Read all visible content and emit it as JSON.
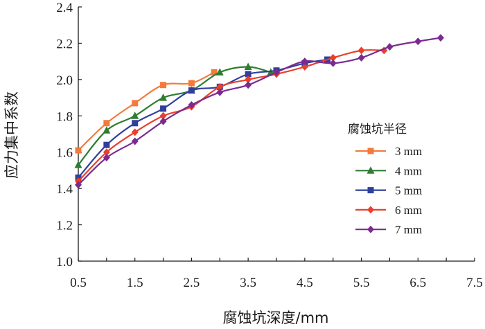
{
  "chart_data": {
    "type": "line",
    "title": "",
    "xlabel": "腐蚀坑深度/mm",
    "ylabel": "应力集中系数",
    "xlim": [
      0.5,
      7.5
    ],
    "ylim": [
      1.0,
      2.4
    ],
    "xticks": [
      0.5,
      1.5,
      2.5,
      3.5,
      4.5,
      5.5,
      6.5,
      7.5
    ],
    "xtick_labels": [
      "0.5",
      "1.5",
      "2.5",
      "3.5",
      "4.5",
      "5.5",
      "6.5",
      "7.5"
    ],
    "xminor_ticks": [
      1.0,
      2.0,
      3.0,
      4.0,
      5.0,
      6.0,
      7.0
    ],
    "yticks": [
      1.0,
      1.2,
      1.4,
      1.6,
      1.8,
      2.0,
      2.2,
      2.4
    ],
    "ytick_labels": [
      "1.0",
      "1.2",
      "1.4",
      "1.6",
      "1.8",
      "2.0",
      "2.2",
      "2.4"
    ],
    "grid": false,
    "legend_title": "腐蚀坑半径",
    "legend_position": "right",
    "series": [
      {
        "name": "3 mm",
        "color": "#f47a3a",
        "marker": "square",
        "x": [
          0.5,
          1.0,
          1.5,
          2.0,
          2.5,
          2.9
        ],
        "y": [
          1.61,
          1.76,
          1.87,
          1.97,
          1.98,
          2.04
        ]
      },
      {
        "name": "4 mm",
        "color": "#2e7d32",
        "marker": "triangle",
        "x": [
          0.5,
          1.0,
          1.5,
          2.0,
          2.5,
          3.0,
          3.5,
          3.9
        ],
        "y": [
          1.53,
          1.72,
          1.8,
          1.9,
          1.94,
          2.04,
          2.07,
          2.04
        ]
      },
      {
        "name": "5 mm",
        "color": "#2f3f9e",
        "marker": "square",
        "x": [
          0.5,
          1.0,
          1.5,
          2.0,
          2.5,
          3.0,
          3.5,
          4.0,
          4.5,
          4.9
        ],
        "y": [
          1.46,
          1.64,
          1.76,
          1.84,
          1.94,
          1.96,
          2.03,
          2.05,
          2.09,
          2.11
        ]
      },
      {
        "name": "6 mm",
        "color": "#e8402c",
        "marker": "diamond",
        "x": [
          0.5,
          1.0,
          1.5,
          2.0,
          2.5,
          3.0,
          3.5,
          4.0,
          4.5,
          5.0,
          5.5,
          5.9
        ],
        "y": [
          1.44,
          1.6,
          1.71,
          1.8,
          1.85,
          1.96,
          2.0,
          2.03,
          2.07,
          2.12,
          2.16,
          2.16
        ]
      },
      {
        "name": "7 mm",
        "color": "#7b2b8f",
        "marker": "diamond",
        "x": [
          0.5,
          1.0,
          1.5,
          2.0,
          2.5,
          3.0,
          3.5,
          4.0,
          4.5,
          5.0,
          5.5,
          6.0,
          6.5,
          6.9
        ],
        "y": [
          1.42,
          1.57,
          1.66,
          1.77,
          1.86,
          1.93,
          1.97,
          2.04,
          2.1,
          2.09,
          2.12,
          2.18,
          2.21,
          2.23
        ]
      }
    ]
  }
}
